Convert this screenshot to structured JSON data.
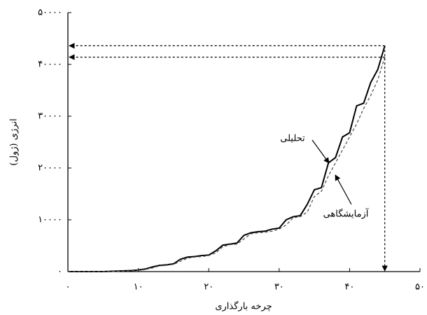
{
  "chart_data": {
    "type": "line",
    "x_label": "چرخه بارگذاری",
    "y_label": "انرژی (ژول)",
    "annotations": [
      "تحلیلی",
      "آزمایشگاهی"
    ],
    "x": [
      0,
      1,
      2,
      3,
      4,
      5,
      6,
      7,
      8,
      9,
      10,
      11,
      12,
      13,
      14,
      15,
      16,
      17,
      18,
      19,
      20,
      21,
      22,
      23,
      24,
      25,
      26,
      27,
      28,
      29,
      30,
      31,
      32,
      33,
      34,
      35,
      36,
      37,
      38,
      39,
      40,
      41,
      42,
      43,
      44,
      45
    ],
    "series": [
      {
        "name": "تحلیلی",
        "color": "#000000",
        "dash": false,
        "values": [
          0,
          0,
          0,
          0,
          0,
          0,
          50,
          100,
          150,
          200,
          300,
          500,
          900,
          1200,
          1300,
          1500,
          2400,
          2800,
          2900,
          3100,
          3200,
          4000,
          5100,
          5300,
          5500,
          7000,
          7500,
          7700,
          7800,
          8200,
          8400,
          10000,
          10600,
          10800,
          13000,
          15800,
          16200,
          21000,
          22000,
          26000,
          26800,
          32000,
          32500,
          36500,
          39000,
          43600
        ]
      },
      {
        "name": "آزمایشگاهی",
        "color": "#555555",
        "dash": true,
        "values": [
          0,
          0,
          0,
          0,
          0,
          0,
          0,
          50,
          100,
          150,
          250,
          400,
          700,
          1100,
          1200,
          1400,
          2000,
          2600,
          2800,
          2900,
          3100,
          3600,
          4800,
          5200,
          5300,
          6300,
          7300,
          7500,
          7600,
          7800,
          8200,
          9000,
          10400,
          10600,
          11500,
          14500,
          15500,
          18500,
          21000,
          23500,
          26000,
          28500,
          31500,
          34000,
          37000,
          41400
        ]
      }
    ],
    "xlim": [
      0,
      50
    ],
    "xticks": [
      {
        "value": 0,
        "label": "۰"
      },
      {
        "value": 10,
        "label": "۱۰"
      },
      {
        "value": 20,
        "label": "۲۰"
      },
      {
        "value": 30,
        "label": "۳۰"
      },
      {
        "value": 40,
        "label": "۴۰"
      },
      {
        "value": 50,
        "label": "۵۰"
      }
    ],
    "ylim": [
      0,
      50000
    ],
    "yticks": [
      {
        "value": 0,
        "label": "۰"
      },
      {
        "value": 10000,
        "label": "۱۰۰۰۰"
      },
      {
        "value": 20000,
        "label": "۲۰۰۰۰"
      },
      {
        "value": 30000,
        "label": "۳۰۰۰۰"
      },
      {
        "value": 40000,
        "label": "۴۰۰۰۰"
      },
      {
        "value": 50000,
        "label": "۵۰۰۰۰"
      }
    ]
  }
}
